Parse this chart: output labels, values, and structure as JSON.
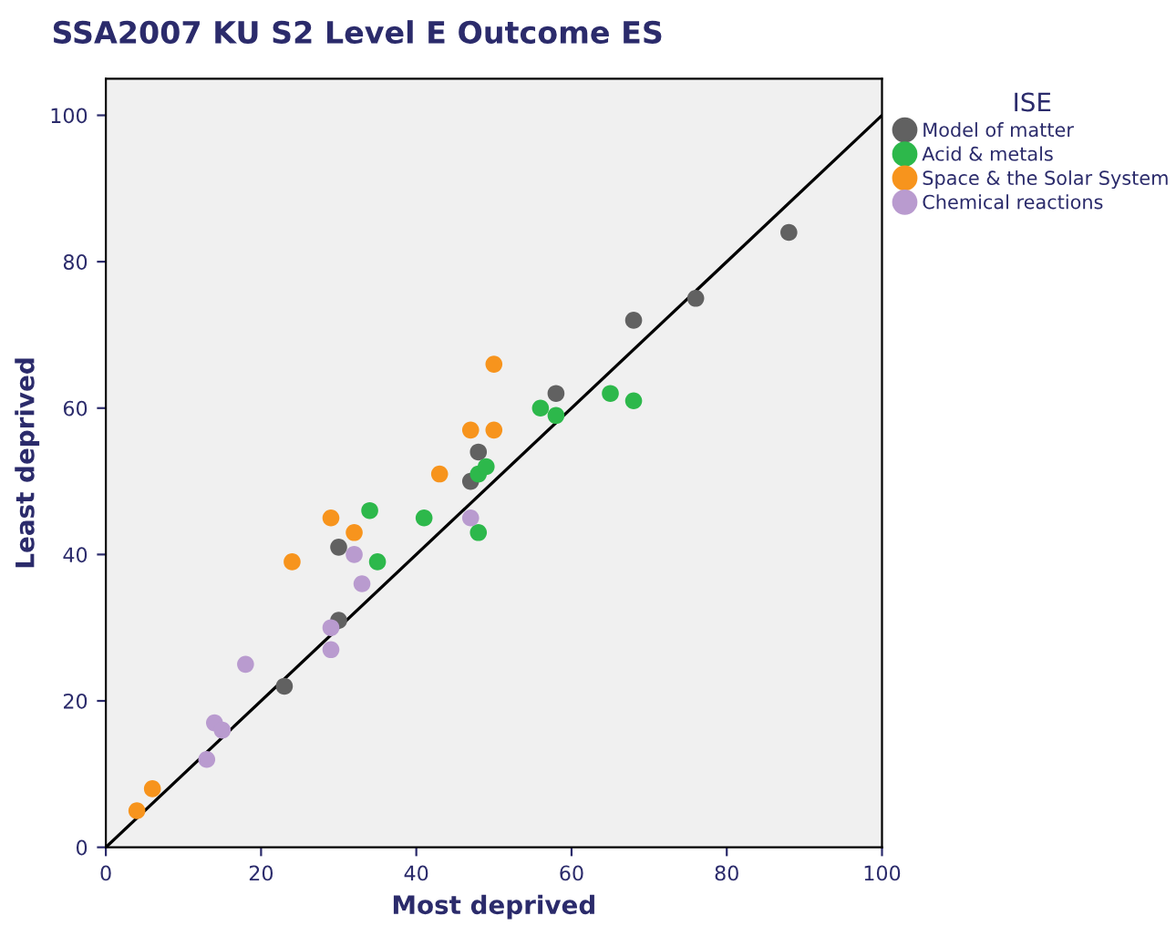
{
  "chart_data": {
    "type": "scatter",
    "title": "SSA2007 KU S2 Level E Outcome ES",
    "xlabel": "Most deprived",
    "ylabel": "Least deprived",
    "legend_title": "ISE",
    "legend": "top right",
    "grid": false,
    "xlim": [
      0,
      100
    ],
    "ylim": [
      0,
      105
    ],
    "xticks": [
      0,
      20,
      40,
      60,
      80,
      100
    ],
    "yticks": [
      0,
      20,
      40,
      60,
      80,
      100
    ],
    "series": [
      {
        "name": "Model of matter",
        "marker": "circle",
        "color": "#616161",
        "x": [
          23,
          30,
          30,
          47,
          48,
          58,
          68,
          76,
          88
        ],
        "values": [
          22,
          31,
          41,
          50,
          54,
          62,
          72,
          75,
          84
        ]
      },
      {
        "name": "Acid & metals",
        "marker": "circle",
        "color": "#2db84b",
        "x": [
          34,
          35,
          41,
          48,
          48,
          49,
          56,
          58,
          65,
          68
        ],
        "values": [
          46,
          39,
          45,
          43,
          51,
          52,
          60,
          59,
          62,
          61
        ]
      },
      {
        "name": "Space & the Solar System",
        "marker": "circle",
        "color": "#f7941d",
        "x": [
          4,
          6,
          24,
          29,
          32,
          43,
          47,
          50,
          50
        ],
        "values": [
          5,
          8,
          39,
          45,
          43,
          51,
          57,
          57,
          66
        ]
      },
      {
        "name": "Chemical reactions",
        "marker": "circle",
        "color": "#b99bcf",
        "x": [
          13,
          14,
          15,
          18,
          29,
          29,
          32,
          33,
          47
        ],
        "values": [
          12,
          17,
          16,
          25,
          27,
          30,
          40,
          36,
          45
        ]
      },
      {
        "type": "line",
        "marker": "none",
        "color": "#000000",
        "x": [
          0,
          100
        ],
        "values": [
          0,
          100
        ]
      }
    ]
  }
}
